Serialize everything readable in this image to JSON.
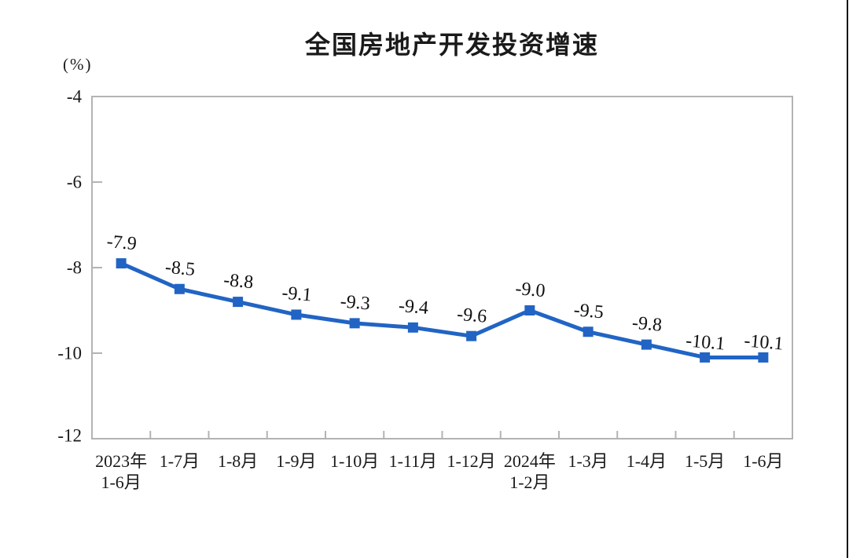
{
  "page": {
    "background_color": "#ffffff",
    "right_edge_color": "#111111"
  },
  "chart": {
    "title": "全国房地产开发投资增速",
    "unit_label": "(%)"
  },
  "chart_data": {
    "type": "line",
    "title": "全国房地产开发投资增速",
    "ylabel": "(%)",
    "categories": [
      "2023年\n1-6月",
      "1-7月",
      "1-8月",
      "1-9月",
      "1-10月",
      "1-11月",
      "1-12月",
      "2024年\n1-2月",
      "1-3月",
      "1-4月",
      "1-5月",
      "1-6月"
    ],
    "values": [
      -7.9,
      -8.5,
      -8.8,
      -9.1,
      -9.3,
      -9.4,
      -9.6,
      -9.0,
      -9.5,
      -9.8,
      -10.1,
      -10.1
    ],
    "point_labels": [
      "-7.9",
      "-8.5",
      "-8.8",
      "-9.1",
      "-9.3",
      "-9.4",
      "-9.6",
      "-9.0",
      "-9.5",
      "-9.8",
      "-10.1",
      "-10.1"
    ],
    "ylim": [
      -12,
      -4
    ],
    "yticks": [
      -4,
      -6,
      -8,
      -10,
      -12
    ],
    "ytick_labels": [
      "-4",
      "-6",
      "-8",
      "-10",
      "-12"
    ],
    "grid": false,
    "legend": "none",
    "marker": "square",
    "line_color": "#2164c4",
    "axis_color": "#b3b3b3",
    "text_color": "#1a1a1a"
  }
}
